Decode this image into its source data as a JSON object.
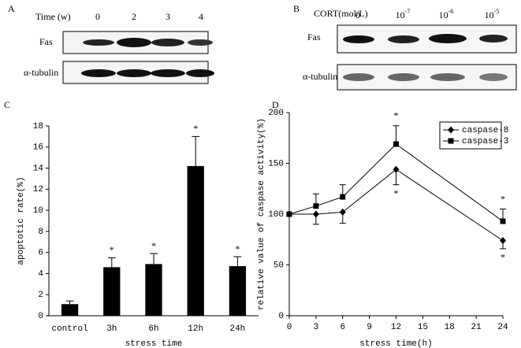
{
  "panels": [
    {
      "label": "A",
      "header_label": "Time (w)",
      "columns": [
        "0",
        "2",
        "3",
        "4"
      ],
      "rows": [
        "Fas",
        "α-tubulin"
      ]
    },
    {
      "label": "B",
      "header_label": "CORT(mol/L)",
      "columns": [
        {
          "base": "0"
        },
        {
          "base": "10",
          "exp": "-7"
        },
        {
          "base": "10",
          "exp": "-6"
        },
        {
          "base": "10",
          "exp": "-5"
        }
      ],
      "rows": [
        "Fas",
        "α-tubulin"
      ]
    },
    {
      "label": "C"
    },
    {
      "label": "D"
    }
  ],
  "chart_data": [
    {
      "type": "bar",
      "x_label": "stress time",
      "y_label": "apoptotic rate(%)",
      "categories": [
        "control",
        "3h",
        "6h",
        "12h",
        "24h"
      ],
      "values": [
        1.1,
        4.6,
        4.9,
        14.2,
        4.7
      ],
      "errors": [
        0.3,
        0.9,
        1.0,
        2.8,
        0.9
      ],
      "color": "#000000",
      "ylim": [
        0,
        18
      ],
      "yticks": [
        0,
        2,
        4,
        6,
        8,
        10,
        12,
        14,
        16,
        18
      ],
      "annotations": [
        {
          "text": "*",
          "category": "3h"
        },
        {
          "text": "*",
          "category": "6h"
        },
        {
          "text": "*",
          "category": "12h"
        },
        {
          "text": "*",
          "category": "24h"
        }
      ]
    },
    {
      "type": "line",
      "x_label": "stress time(h)",
      "y_label": "relative value of caspase activity(%)",
      "x": [
        0,
        3,
        6,
        12,
        24
      ],
      "series": [
        {
          "name": "caspase-8",
          "color": "#000000",
          "marker": "diamond",
          "error_direction": "down",
          "values": [
            100,
            100,
            102,
            144,
            74
          ],
          "errors": [
            0,
            10,
            11,
            15,
            8
          ]
        },
        {
          "name": "caspase-3",
          "color": "#000000",
          "marker": "square",
          "error_direction": "up",
          "values": [
            100,
            108,
            117,
            169,
            93
          ],
          "errors": [
            0,
            12,
            12,
            18,
            12
          ]
        }
      ],
      "xlim": [
        0,
        24
      ],
      "xticks": [
        0,
        3,
        6,
        9,
        12,
        15,
        18,
        21,
        24
      ],
      "ylim": [
        0,
        200
      ],
      "yticks": [
        0,
        50,
        100,
        150,
        200
      ],
      "legend": "upper right",
      "annotations": [
        {
          "text": "*",
          "series": "caspase-3",
          "x": 12
        },
        {
          "text": "*",
          "series": "caspase-8",
          "x": 12
        },
        {
          "text": "*",
          "series": "caspase-3",
          "x": 24
        },
        {
          "text": "*",
          "series": "caspase-8",
          "x": 24
        }
      ]
    }
  ]
}
